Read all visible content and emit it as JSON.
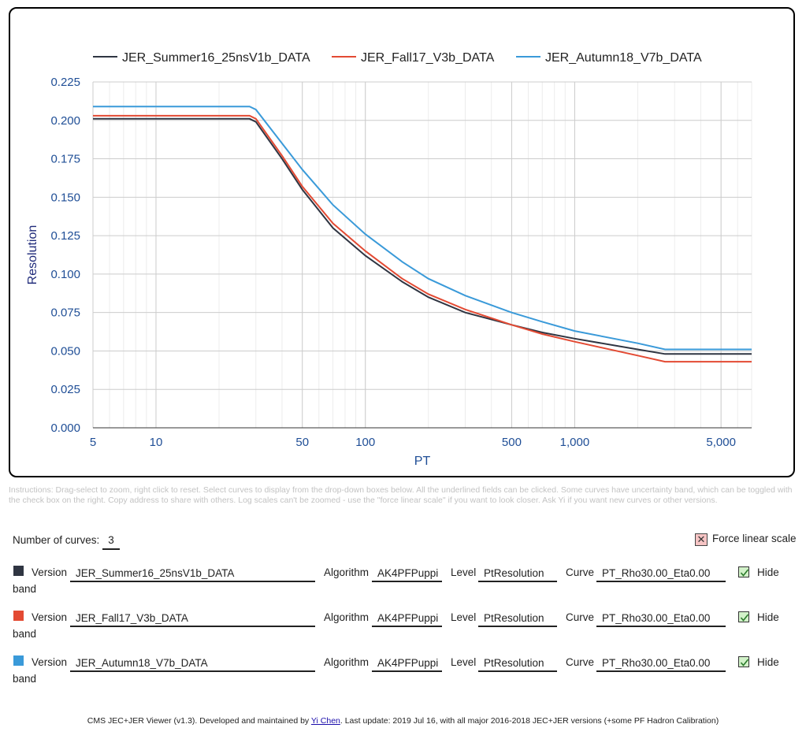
{
  "chart_data": {
    "type": "line",
    "xlabel": "PT",
    "ylabel": "Resolution",
    "x_scale": "log",
    "xlim": [
      5,
      7000
    ],
    "ylim": [
      0,
      0.225
    ],
    "x_ticks": [
      5,
      10,
      50,
      100,
      500,
      1000,
      5000
    ],
    "x_tick_labels": [
      "5",
      "10",
      "50",
      "100",
      "500",
      "1,000",
      "5,000"
    ],
    "y_ticks": [
      0,
      0.025,
      0.05,
      0.075,
      0.1,
      0.125,
      0.15,
      0.175,
      0.2,
      0.225
    ],
    "y_tick_labels": [
      "0.000",
      "0.025",
      "0.050",
      "0.075",
      "0.100",
      "0.125",
      "0.150",
      "0.175",
      "0.200",
      "0.225"
    ],
    "grid": true,
    "legend_position": "top",
    "series": [
      {
        "name": "JER_Summer16_25nsV1b_DATA",
        "color": "#2f3542",
        "x": [
          5,
          28,
          30,
          40,
          50,
          70,
          100,
          150,
          200,
          300,
          500,
          700,
          1000,
          2000,
          2700,
          7000
        ],
        "y": [
          0.201,
          0.201,
          0.199,
          0.175,
          0.155,
          0.13,
          0.112,
          0.095,
          0.085,
          0.075,
          0.067,
          0.062,
          0.058,
          0.051,
          0.048,
          0.048
        ]
      },
      {
        "name": "JER_Fall17_V3b_DATA",
        "color": "#e34a33",
        "x": [
          5,
          28,
          30,
          40,
          50,
          70,
          100,
          150,
          200,
          300,
          500,
          700,
          1000,
          2000,
          2700,
          7000
        ],
        "y": [
          0.203,
          0.203,
          0.201,
          0.177,
          0.157,
          0.133,
          0.115,
          0.097,
          0.087,
          0.077,
          0.067,
          0.061,
          0.056,
          0.047,
          0.043,
          0.043
        ]
      },
      {
        "name": "JER_Autumn18_V7b_DATA",
        "color": "#3a9ad9",
        "x": [
          5,
          28,
          30,
          40,
          50,
          70,
          100,
          150,
          200,
          300,
          500,
          700,
          1000,
          2000,
          2700,
          7000
        ],
        "y": [
          0.209,
          0.209,
          0.207,
          0.185,
          0.168,
          0.145,
          0.126,
          0.108,
          0.097,
          0.086,
          0.075,
          0.069,
          0.063,
          0.055,
          0.051,
          0.051
        ]
      }
    ]
  },
  "instructions": "Instructions: Drag-select to zoom, right click to reset. Select curves to display from the drop-down boxes below. All the underlined fields can be clicked. Some curves have uncertainty band, which can be toggled with the check box on the right. Copy address to share with others. Log scales can't be zoomed - use the \"force linear scale\" if you want to look closer. Ask Yi if you want new curves or other versions.",
  "controls": {
    "num_curves_label": "Number of curves:",
    "num_curves_value": "3",
    "force_linear_label": "Force linear scale",
    "force_linear_icon": "x-icon",
    "labels": {
      "version": "Version",
      "algorithm": "Algorithm",
      "level": "Level",
      "curve": "Curve",
      "hide": "Hide",
      "band": "band"
    },
    "rows": [
      {
        "color": "#2f3542",
        "version": "JER_Summer16_25nsV1b_DATA",
        "algorithm": "AK4PFPuppi",
        "level": "PtResolution",
        "curve": "PT_Rho30.00_Eta0.00"
      },
      {
        "color": "#e34a33",
        "version": "JER_Fall17_V3b_DATA",
        "algorithm": "AK4PFPuppi",
        "level": "PtResolution",
        "curve": "PT_Rho30.00_Eta0.00"
      },
      {
        "color": "#3a9ad9",
        "version": "JER_Autumn18_V7b_DATA",
        "algorithm": "AK4PFPuppi",
        "level": "PtResolution",
        "curve": "PT_Rho30.00_Eta0.00"
      }
    ]
  },
  "footer": {
    "prefix": "CMS JEC+JER Viewer (v1.3). Developed and maintained by ",
    "author": "Yi Chen",
    "suffix": ". Last update: 2019 Jul 16, with all major 2016-2018 JEC+JER versions (+some PF Hadron Calibration)"
  }
}
